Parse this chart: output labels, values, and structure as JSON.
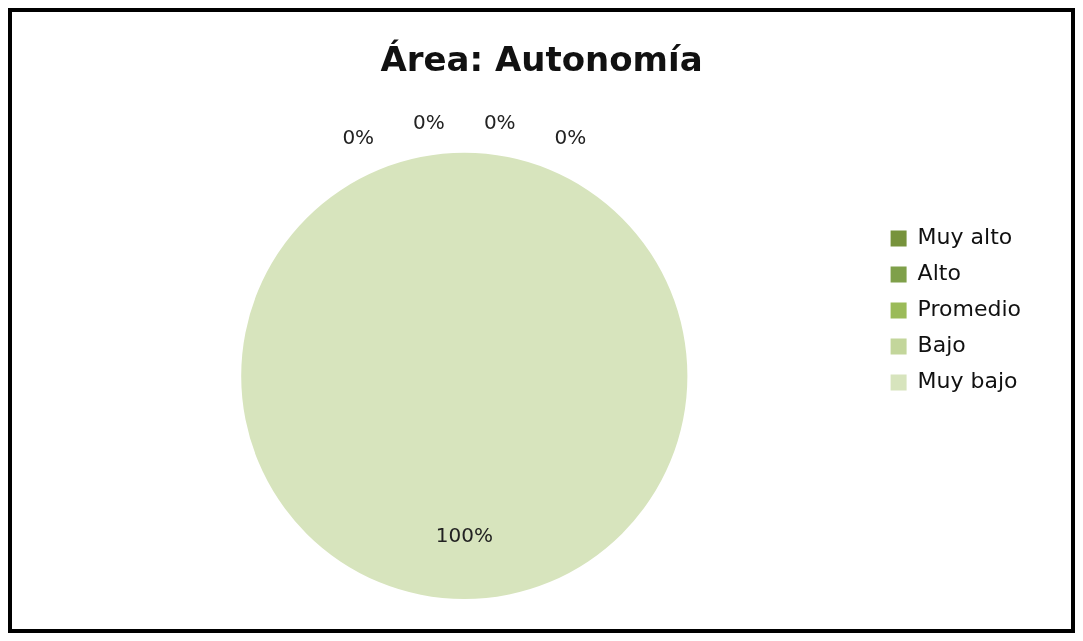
{
  "chart_data": {
    "type": "pie",
    "title": "Área: Autonomía",
    "categories": [
      "Muy alto",
      "Alto",
      "Promedio",
      "Bajo",
      "Muy bajo"
    ],
    "values": [
      0,
      0,
      0,
      0,
      100
    ],
    "colors": [
      "#77933c",
      "#7fa04a",
      "#9bbb59",
      "#c3d69b",
      "#d7e4bd"
    ],
    "value_labels": [
      "0%",
      "0%",
      "0%",
      "0%",
      "100%"
    ],
    "legend": "right"
  }
}
